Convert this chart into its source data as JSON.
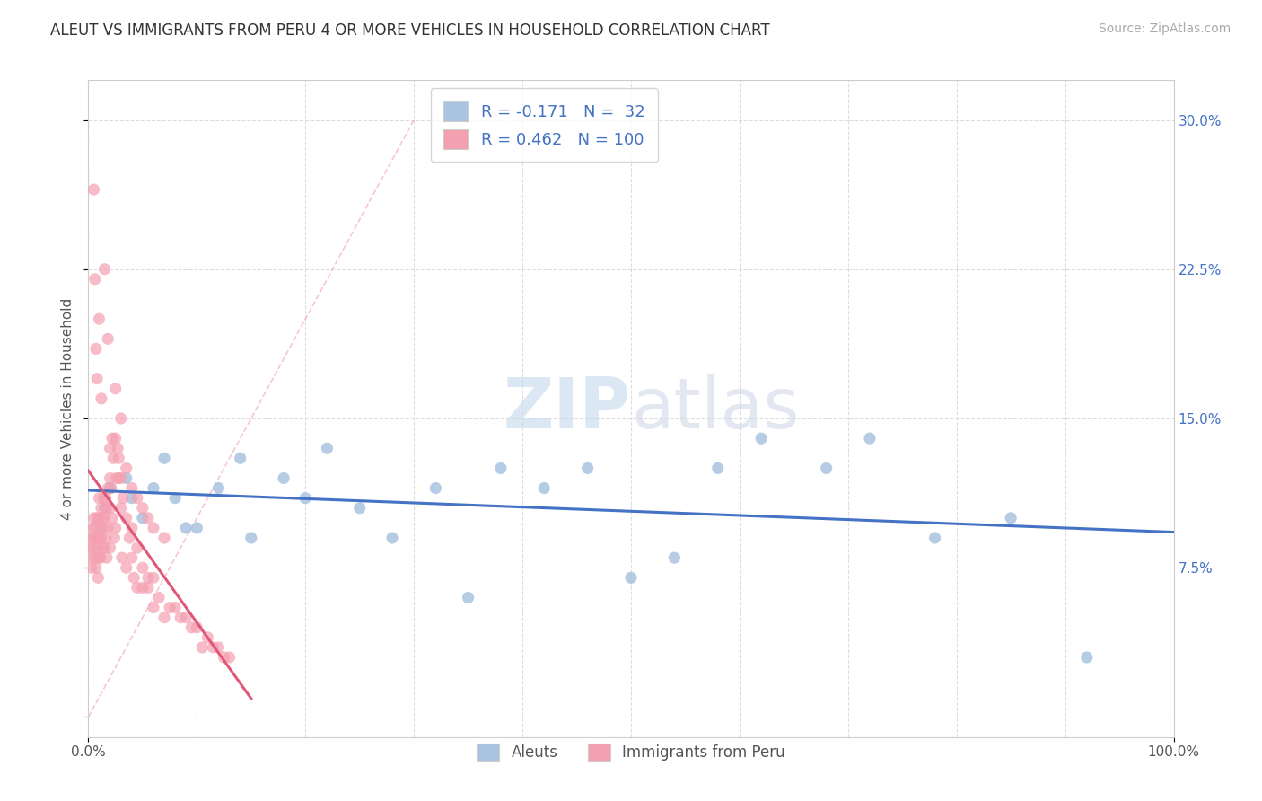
{
  "title": "ALEUT VS IMMIGRANTS FROM PERU 4 OR MORE VEHICLES IN HOUSEHOLD CORRELATION CHART",
  "source": "Source: ZipAtlas.com",
  "ylabel": "4 or more Vehicles in Household",
  "xlim": [
    0,
    100
  ],
  "ylim": [
    -1,
    32
  ],
  "xticks": [
    0,
    10,
    20,
    30,
    40,
    50,
    60,
    70,
    80,
    90,
    100
  ],
  "yticks": [
    0,
    7.5,
    15.0,
    22.5,
    30.0
  ],
  "ytick_labels": [
    "",
    "7.5%",
    "15.0%",
    "22.5%",
    "30.0%"
  ],
  "R_aleut": -0.171,
  "N_aleut": 32,
  "R_peru": 0.462,
  "N_peru": 100,
  "aleut_color": "#a8c4e0",
  "peru_color": "#f4a0b0",
  "aleut_line_color": "#4472c4",
  "peru_line_color": "#e05878",
  "diag_line_color": "#f4a0b0",
  "label_color": "#4472c4",
  "text_color": "#555555",
  "background_color": "#ffffff",
  "grid_color": "#dddddd",
  "aleut_x": [
    1.5,
    2.0,
    3.5,
    4.0,
    5.0,
    6.0,
    7.0,
    8.0,
    9.0,
    10.0,
    12.0,
    14.0,
    15.0,
    18.0,
    20.0,
    22.0,
    25.0,
    28.0,
    32.0,
    35.0,
    38.0,
    42.0,
    46.0,
    50.0,
    54.0,
    58.0,
    62.0,
    68.0,
    72.0,
    78.0,
    85.0,
    92.0
  ],
  "aleut_y": [
    10.5,
    11.5,
    12.0,
    11.0,
    10.0,
    11.5,
    13.0,
    11.0,
    9.5,
    9.5,
    11.5,
    13.0,
    9.0,
    12.0,
    11.0,
    13.5,
    10.5,
    9.0,
    11.5,
    6.0,
    12.5,
    11.5,
    12.5,
    7.0,
    8.0,
    12.5,
    14.0,
    12.5,
    14.0,
    9.0,
    10.0,
    3.0
  ],
  "peru_x": [
    0.2,
    0.3,
    0.3,
    0.4,
    0.4,
    0.5,
    0.5,
    0.5,
    0.6,
    0.6,
    0.7,
    0.7,
    0.8,
    0.8,
    0.9,
    0.9,
    1.0,
    1.0,
    1.0,
    1.0,
    1.1,
    1.1,
    1.2,
    1.2,
    1.3,
    1.3,
    1.4,
    1.4,
    1.5,
    1.5,
    1.6,
    1.6,
    1.7,
    1.7,
    1.8,
    1.8,
    2.0,
    2.0,
    2.0,
    2.1,
    2.2,
    2.3,
    2.4,
    2.5,
    2.5,
    2.6,
    2.7,
    2.8,
    3.0,
    3.0,
    3.1,
    3.2,
    3.5,
    3.5,
    3.8,
    4.0,
    4.0,
    4.2,
    4.5,
    4.5,
    5.0,
    5.0,
    5.5,
    5.5,
    6.0,
    6.0,
    6.5,
    7.0,
    7.5,
    8.0,
    8.5,
    9.0,
    9.5,
    10.0,
    10.5,
    11.0,
    11.5,
    12.0,
    12.5,
    13.0,
    0.5,
    0.6,
    0.7,
    0.8,
    1.0,
    1.2,
    1.5,
    1.8,
    2.0,
    2.2,
    2.5,
    2.8,
    3.0,
    3.5,
    4.0,
    4.5,
    5.0,
    5.5,
    6.0,
    7.0
  ],
  "peru_y": [
    8.5,
    9.0,
    7.5,
    8.0,
    9.5,
    9.0,
    8.5,
    10.0,
    8.0,
    9.5,
    7.5,
    9.0,
    8.5,
    10.0,
    7.0,
    9.0,
    9.0,
    8.0,
    10.0,
    11.0,
    9.5,
    8.0,
    10.5,
    9.0,
    8.5,
    10.0,
    9.5,
    11.0,
    10.0,
    8.5,
    11.0,
    9.0,
    10.5,
    8.0,
    9.5,
    11.5,
    12.0,
    8.5,
    10.5,
    11.5,
    10.0,
    13.0,
    9.0,
    14.0,
    9.5,
    12.0,
    13.5,
    12.0,
    10.5,
    12.0,
    8.0,
    11.0,
    10.0,
    7.5,
    9.0,
    9.5,
    8.0,
    7.0,
    8.5,
    6.5,
    6.5,
    7.5,
    6.5,
    7.0,
    5.5,
    7.0,
    6.0,
    5.0,
    5.5,
    5.5,
    5.0,
    5.0,
    4.5,
    4.5,
    3.5,
    4.0,
    3.5,
    3.5,
    3.0,
    3.0,
    26.5,
    22.0,
    18.5,
    17.0,
    20.0,
    16.0,
    22.5,
    19.0,
    13.5,
    14.0,
    16.5,
    13.0,
    15.0,
    12.5,
    11.5,
    11.0,
    10.5,
    10.0,
    9.5,
    9.0
  ]
}
